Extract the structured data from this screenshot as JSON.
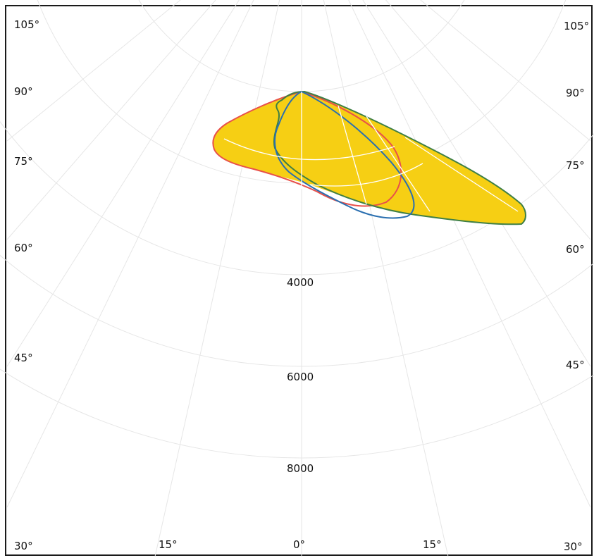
{
  "chart_data": {
    "type": "polar-area",
    "radial_ticks": [
      "4000",
      "6000",
      "8000"
    ],
    "angle_labels_left": [
      "105°",
      "90°",
      "75°",
      "60°",
      "45°",
      "30°"
    ],
    "angle_labels_right": [
      "105°",
      "90°",
      "75°",
      "60°",
      "45°",
      "30°"
    ],
    "angle_labels_bottom": [
      "15°",
      "0°",
      "15°"
    ],
    "series": [
      {
        "color": "#e8504a",
        "fill": "#f6cf14"
      },
      {
        "color": "#3f7f45",
        "fill": "#f6cf14"
      },
      {
        "color": "#2a6fb0",
        "fill": "none"
      }
    ],
    "grid": true
  }
}
